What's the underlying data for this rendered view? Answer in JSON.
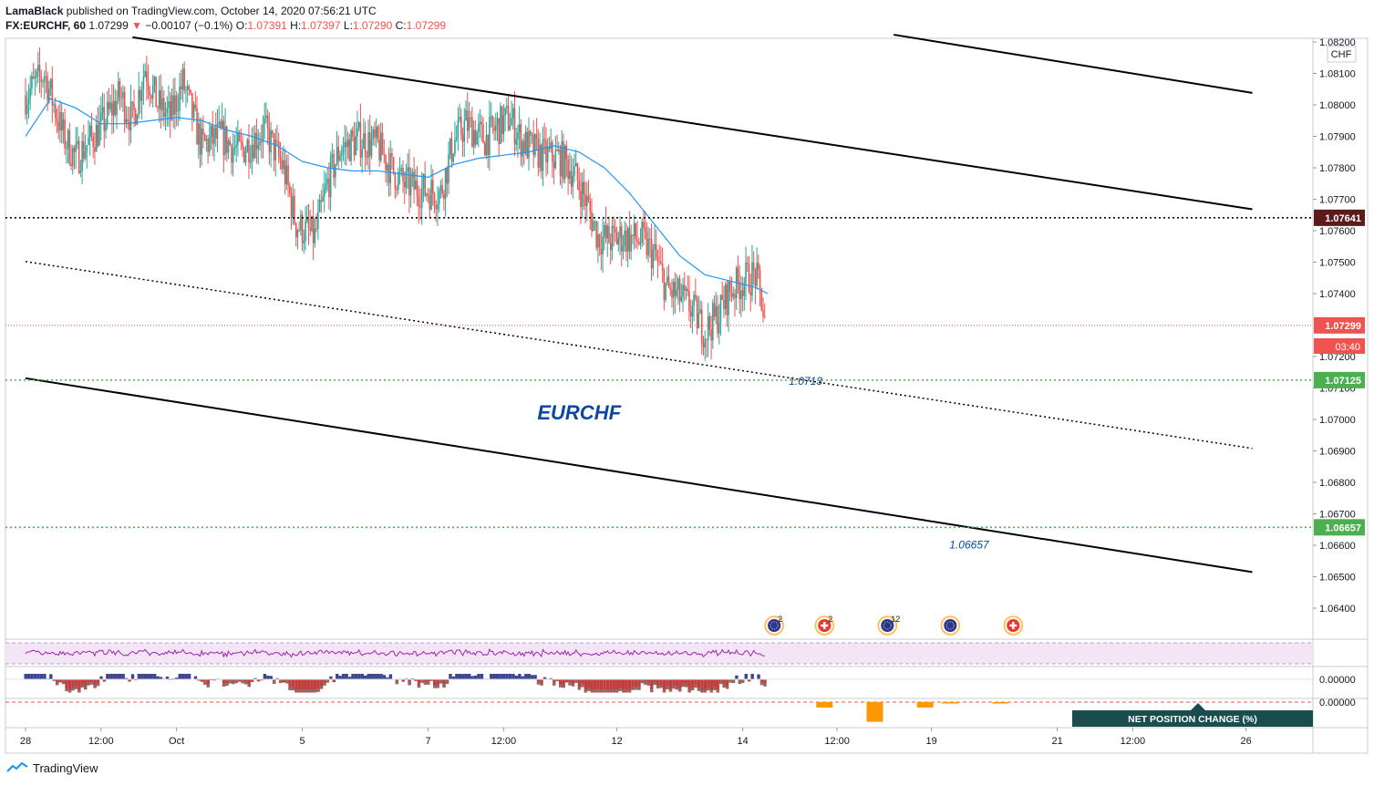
{
  "header": {
    "author": "LamaBlack",
    "published_text": "published on TradingView.com, October 14, 2020 07:56:21 UTC",
    "symbol": "FX:EURCHF, 60",
    "last": "1.07299",
    "change": "−0.00107 (−0.1%)",
    "o_label": "O:",
    "o_value": "1.07391",
    "h_label": "H:",
    "h_value": "1.07397",
    "l_label": "L:",
    "l_value": "1.07290",
    "c_label": "C:",
    "c_value": "1.07299"
  },
  "footer": {
    "brand": "TradingView"
  },
  "colors": {
    "up": "#26a69a",
    "down": "#ef5350",
    "ma": "#2196f3",
    "support_green": "#4caf50",
    "resistance_dark": "#5d1a1a",
    "accent_blue": "#0d47a1",
    "rsi_line": "#9c27b0",
    "rsi_bg": "#f3e5f5",
    "net_position_bg": "#1b4d4f",
    "bar_orange": "#ff9800"
  },
  "chart_data": {
    "type": "candlestick",
    "symbol": "EURCHF",
    "interval": "60",
    "currency_label": "CHF",
    "ylim": [
      1.063,
      1.0823
    ],
    "yticks": [
      "1.08200",
      "1.08100",
      "1.08000",
      "1.07900",
      "1.07800",
      "1.07700",
      "1.07600",
      "1.07500",
      "1.07400",
      "1.07200",
      "1.07100",
      "1.07000",
      "1.06900",
      "1.06800",
      "1.06700",
      "1.06600",
      "1.06500",
      "1.06400"
    ],
    "xticks": [
      {
        "label": "28",
        "t": 0
      },
      {
        "label": "12:00",
        "t": 12
      },
      {
        "label": "Oct",
        "t": 24
      },
      {
        "label": "5",
        "t": 44
      },
      {
        "label": "7",
        "t": 64
      },
      {
        "label": "12:00",
        "t": 76
      },
      {
        "label": "12",
        "t": 94
      },
      {
        "label": "14",
        "t": 114
      },
      {
        "label": "12:00",
        "t": 129
      },
      {
        "label": "19",
        "t": 144
      },
      {
        "label": "21",
        "t": 164
      },
      {
        "label": "12:00",
        "t": 176
      },
      {
        "label": "26",
        "t": 194
      }
    ],
    "close_path": [
      {
        "t": 0,
        "v": 1.0803
      },
      {
        "t": 3,
        "v": 1.081
      },
      {
        "t": 6,
        "v": 1.079
      },
      {
        "t": 8,
        "v": 1.0783
      },
      {
        "t": 12,
        "v": 1.0793
      },
      {
        "t": 15,
        "v": 1.0803
      },
      {
        "t": 17,
        "v": 1.0795
      },
      {
        "t": 19,
        "v": 1.0812
      },
      {
        "t": 21,
        "v": 1.08
      },
      {
        "t": 23,
        "v": 1.0796
      },
      {
        "t": 25,
        "v": 1.0807
      },
      {
        "t": 28,
        "v": 1.0787
      },
      {
        "t": 31,
        "v": 1.079
      },
      {
        "t": 34,
        "v": 1.0785
      },
      {
        "t": 38,
        "v": 1.0792
      },
      {
        "t": 41,
        "v": 1.078
      },
      {
        "t": 43,
        "v": 1.0762
      },
      {
        "t": 46,
        "v": 1.0758
      },
      {
        "t": 48,
        "v": 1.0775
      },
      {
        "t": 50,
        "v": 1.0786
      },
      {
        "t": 53,
        "v": 1.0789
      },
      {
        "t": 56,
        "v": 1.0787
      },
      {
        "t": 58,
        "v": 1.078
      },
      {
        "t": 60,
        "v": 1.0775
      },
      {
        "t": 63,
        "v": 1.0773
      },
      {
        "t": 66,
        "v": 1.0772
      },
      {
        "t": 68,
        "v": 1.0788
      },
      {
        "t": 70,
        "v": 1.0794
      },
      {
        "t": 73,
        "v": 1.0789
      },
      {
        "t": 75,
        "v": 1.0793
      },
      {
        "t": 77,
        "v": 1.0796
      },
      {
        "t": 79,
        "v": 1.0788
      },
      {
        "t": 82,
        "v": 1.0784
      },
      {
        "t": 85,
        "v": 1.0783
      },
      {
        "t": 87,
        "v": 1.0779
      },
      {
        "t": 89,
        "v": 1.077
      },
      {
        "t": 91,
        "v": 1.0758
      },
      {
        "t": 93,
        "v": 1.0757
      },
      {
        "t": 95,
        "v": 1.0758
      },
      {
        "t": 98,
        "v": 1.0757
      },
      {
        "t": 100,
        "v": 1.0752
      },
      {
        "t": 102,
        "v": 1.0741
      },
      {
        "t": 104,
        "v": 1.0739
      },
      {
        "t": 106,
        "v": 1.0735
      },
      {
        "t": 108,
        "v": 1.0728
      },
      {
        "t": 110,
        "v": 1.0733
      },
      {
        "t": 112,
        "v": 1.0741
      },
      {
        "t": 114,
        "v": 1.0744
      },
      {
        "t": 116,
        "v": 1.0746
      },
      {
        "t": 117,
        "v": 1.0738
      },
      {
        "t": 117.5,
        "v": 1.073
      }
    ],
    "moving_average": [
      {
        "t": 0,
        "v": 1.079
      },
      {
        "t": 4,
        "v": 1.0802
      },
      {
        "t": 8,
        "v": 1.0799
      },
      {
        "t": 12,
        "v": 1.0794
      },
      {
        "t": 16,
        "v": 1.0794
      },
      {
        "t": 20,
        "v": 1.0795
      },
      {
        "t": 24,
        "v": 1.0796
      },
      {
        "t": 28,
        "v": 1.0795
      },
      {
        "t": 32,
        "v": 1.0792
      },
      {
        "t": 36,
        "v": 1.079
      },
      {
        "t": 40,
        "v": 1.0787
      },
      {
        "t": 44,
        "v": 1.0782
      },
      {
        "t": 48,
        "v": 1.078
      },
      {
        "t": 52,
        "v": 1.0779
      },
      {
        "t": 56,
        "v": 1.0779
      },
      {
        "t": 60,
        "v": 1.0778
      },
      {
        "t": 64,
        "v": 1.0777
      },
      {
        "t": 68,
        "v": 1.0781
      },
      {
        "t": 72,
        "v": 1.0783
      },
      {
        "t": 76,
        "v": 1.0784
      },
      {
        "t": 80,
        "v": 1.0785
      },
      {
        "t": 84,
        "v": 1.0787
      },
      {
        "t": 88,
        "v": 1.0785
      },
      {
        "t": 92,
        "v": 1.078
      },
      {
        "t": 96,
        "v": 1.0772
      },
      {
        "t": 100,
        "v": 1.0762
      },
      {
        "t": 104,
        "v": 1.0752
      },
      {
        "t": 108,
        "v": 1.0746
      },
      {
        "t": 112,
        "v": 1.0744
      },
      {
        "t": 116,
        "v": 1.0742
      },
      {
        "t": 118,
        "v": 1.074
      }
    ],
    "channel_lines": [
      {
        "style": "solid",
        "from": {
          "t": 17,
          "v": 1.08215
        },
        "to": {
          "t": 195,
          "v": 1.07668
        }
      },
      {
        "style": "solid",
        "from": {
          "t": 138,
          "v": 1.08223
        },
        "to": {
          "t": 195,
          "v": 1.08038
        }
      },
      {
        "style": "solid",
        "from": {
          "t": 0,
          "v": 1.07131
        },
        "to": {
          "t": 195,
          "v": 1.06515
        }
      },
      {
        "style": "dotted",
        "from": {
          "t": 0,
          "v": 1.07502
        },
        "to": {
          "t": 195,
          "v": 1.06908
        }
      }
    ],
    "horizontal_levels": [
      {
        "value": 1.07641,
        "label": "1.07641",
        "role": "resistance"
      },
      {
        "value": 1.07125,
        "label": "1.07125",
        "role": "support"
      },
      {
        "value": 1.06657,
        "label": "1.06657",
        "role": "support"
      },
      {
        "value": 1.07299,
        "label": "1.07299",
        "role": "last_price"
      }
    ],
    "countdown": "03:40",
    "annotations": [
      {
        "text": "1.0713",
        "t": 124,
        "v": 1.0711
      },
      {
        "text": "EURCHF",
        "t": 88,
        "v": 1.07
      },
      {
        "text": "1.06657",
        "t": 150,
        "v": 1.0659
      }
    ],
    "events": [
      {
        "t": 119,
        "badge": "2",
        "kind": "EU"
      },
      {
        "t": 127,
        "badge": "2",
        "kind": "CH"
      },
      {
        "t": 137,
        "badge": "12",
        "kind": "EU"
      },
      {
        "t": 147,
        "badge": "",
        "kind": "EU"
      },
      {
        "t": 157,
        "badge": "",
        "kind": "CH"
      }
    ],
    "indicator_ticks": [
      "0.00000",
      "0.00000"
    ],
    "net_position_label": "NET POSITION CHANGE (%)",
    "net_position_bars": [
      {
        "t": 127,
        "value": -0.5
      },
      {
        "t": 135,
        "value": -1.8
      },
      {
        "t": 143,
        "value": -0.5
      },
      {
        "t": 147,
        "value": -0.1
      },
      {
        "t": 155,
        "value": -0.05
      }
    ]
  }
}
